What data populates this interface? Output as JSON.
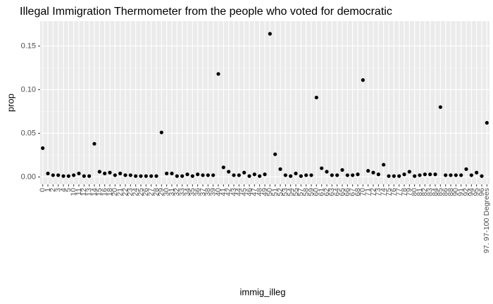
{
  "chart_data": {
    "type": "scatter",
    "title": "Illegal Immigration Thermometer from the people who voted for democratic",
    "x_label": "immig_illeg",
    "y_label": "prop",
    "categories": [
      "0",
      "1",
      "2",
      "3",
      "4",
      "5",
      "10",
      "11",
      "12",
      "13",
      "14",
      "15",
      "16",
      "18",
      "20",
      "21",
      "22",
      "23",
      "24",
      "25",
      "26",
      "27",
      "28",
      "29",
      "30",
      "31",
      "32",
      "33",
      "34",
      "35",
      "36",
      "37",
      "38",
      "39",
      "40",
      "41",
      "42",
      "43",
      "44",
      "45",
      "46",
      "47",
      "48",
      "49",
      "50",
      "51",
      "52",
      "53",
      "54",
      "55",
      "57",
      "58",
      "59",
      "60",
      "61",
      "62",
      "63",
      "64",
      "65",
      "66",
      "67",
      "68",
      "70",
      "71",
      "72",
      "73",
      "74",
      "75",
      "76",
      "77",
      "78",
      "79",
      "80",
      "81",
      "82",
      "83",
      "84",
      "85",
      "86",
      "88",
      "90",
      "91",
      "92",
      "94",
      "95",
      "96",
      "97. 97-100 Degrees"
    ],
    "values": [
      0.033,
      0.004,
      0.002,
      0.002,
      0.001,
      0.001,
      0.002,
      0.004,
      0.001,
      0.001,
      0.038,
      0.006,
      0.004,
      0.005,
      0.002,
      0.004,
      0.002,
      0.002,
      0.001,
      0.001,
      0.001,
      0.001,
      0.001,
      0.051,
      0.004,
      0.004,
      0.001,
      0.001,
      0.003,
      0.001,
      0.003,
      0.002,
      0.002,
      0.002,
      0.118,
      0.011,
      0.006,
      0.002,
      0.002,
      0.005,
      0.001,
      0.003,
      0.001,
      0.003,
      0.164,
      0.026,
      0.009,
      0.002,
      0.001,
      0.004,
      0.001,
      0.002,
      0.002,
      0.091,
      0.01,
      0.006,
      0.002,
      0.002,
      0.008,
      0.002,
      0.002,
      0.003,
      0.111,
      0.007,
      0.005,
      0.003,
      0.014,
      0.001,
      0.001,
      0.001,
      0.003,
      0.006,
      0.001,
      0.002,
      0.003,
      0.003,
      0.003,
      0.08,
      0.002,
      0.002,
      0.002,
      0.002,
      0.009,
      0.002,
      0.005,
      0.001,
      0.062
    ],
    "color": "#000000",
    "ylim": [
      -0.0085,
      0.1785
    ],
    "yticks": [
      {
        "value": 0,
        "label": "0.00"
      },
      {
        "value": 0.05,
        "label": "0.05"
      },
      {
        "value": 0.1,
        "label": "0.10"
      },
      {
        "value": 0.15,
        "label": "0.15"
      }
    ],
    "grid": true
  }
}
